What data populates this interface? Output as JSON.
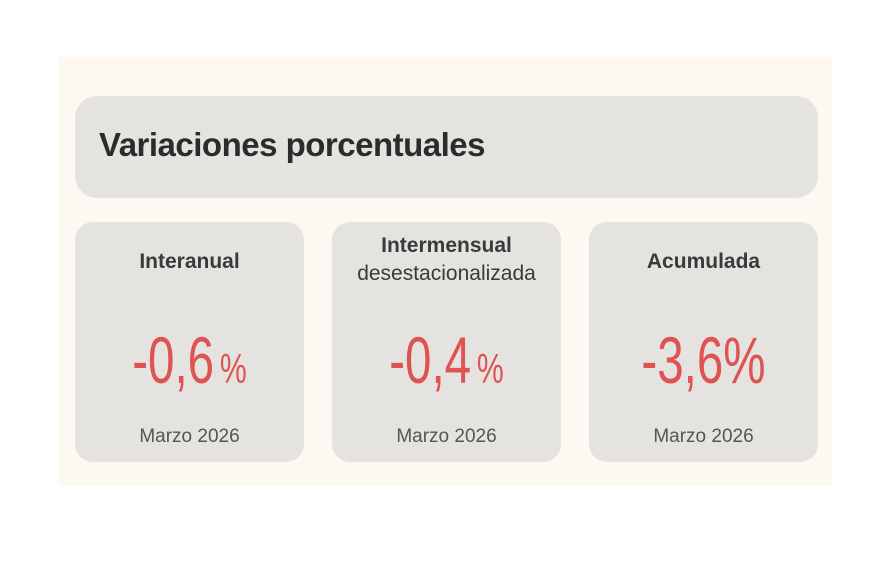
{
  "header": {
    "title": "Variaciones porcentuales"
  },
  "cards": [
    {
      "label": "Interanual",
      "value": "-0,6",
      "unit": "%",
      "date": "Marzo 2026"
    },
    {
      "label": "Intermensual",
      "sublabel": "desestacionalizada",
      "value": "-0,4",
      "unit": "%",
      "date": "Marzo 2026"
    },
    {
      "label": "Acumulada",
      "value": "-3,6",
      "unit": "%",
      "date": "Marzo 2026"
    }
  ]
}
